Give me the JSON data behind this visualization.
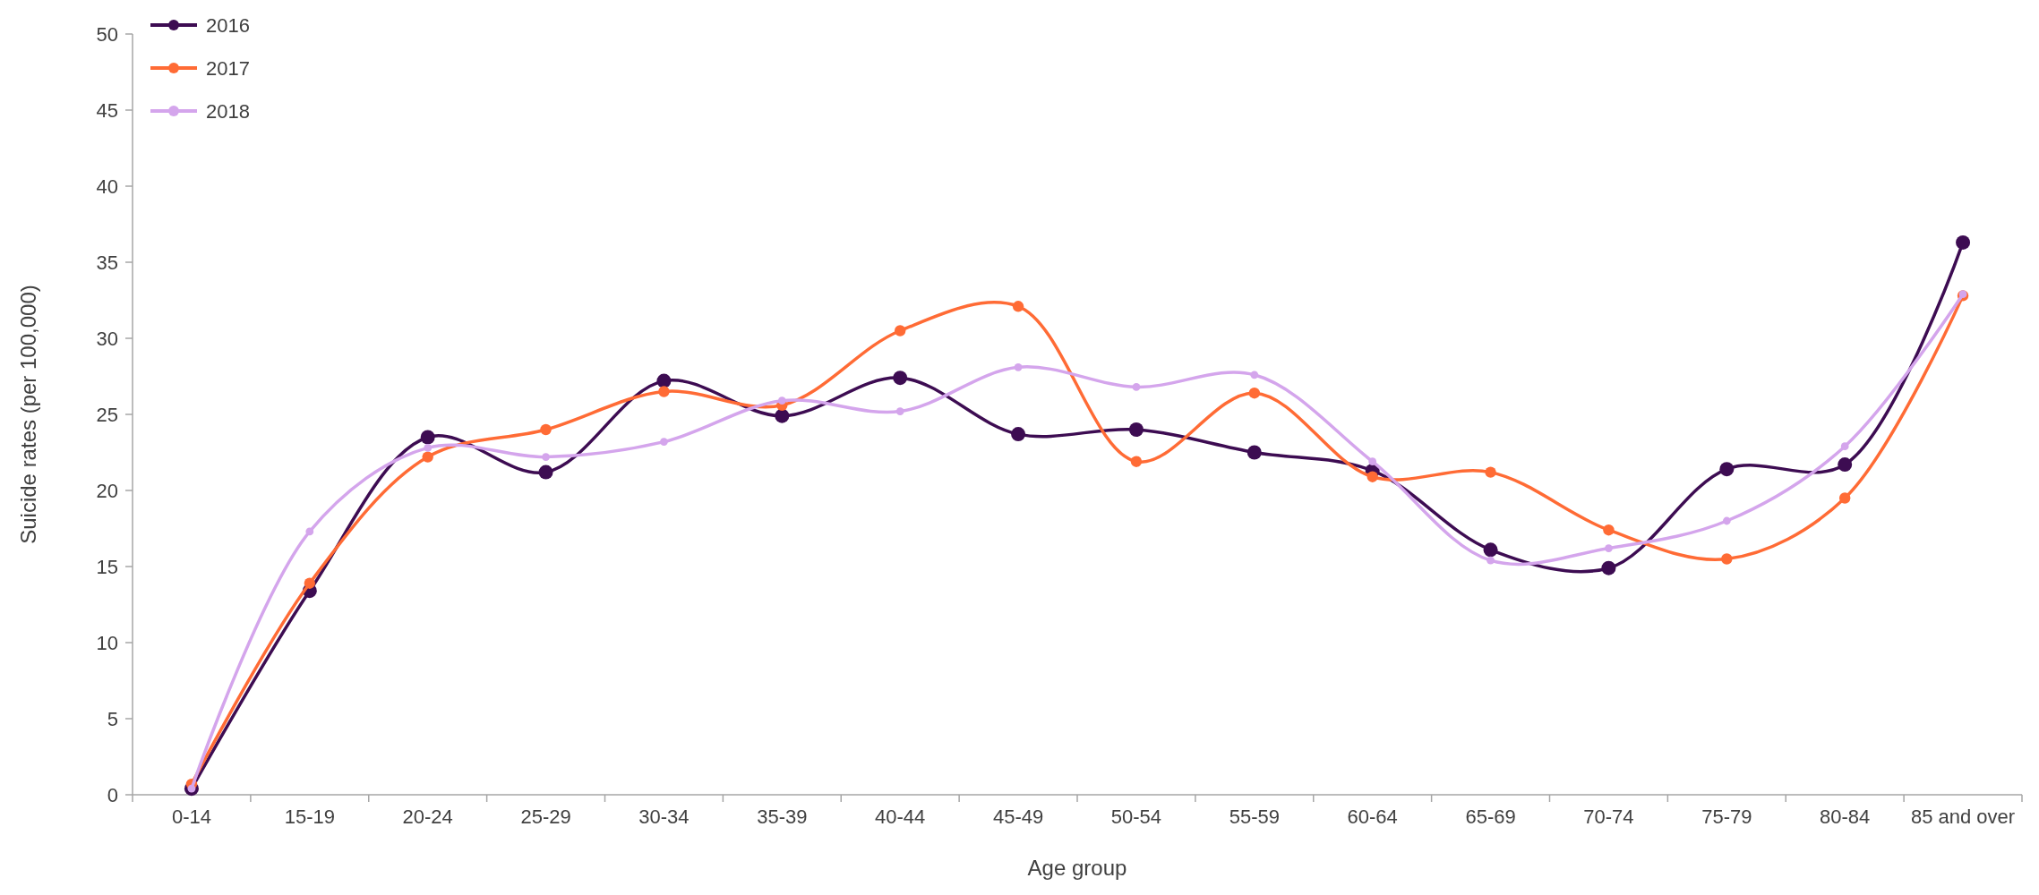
{
  "chart_data": {
    "type": "line",
    "xlabel": "Age group",
    "ylabel": "Suicide rates (per 100,000)",
    "categories": [
      "0-14",
      "15-19",
      "20-24",
      "25-29",
      "30-34",
      "35-39",
      "40-44",
      "45-49",
      "50-54",
      "55-59",
      "60-64",
      "65-69",
      "70-74",
      "75-79",
      "80-84",
      "85 and over"
    ],
    "series": [
      {
        "name": "2016",
        "color": "#3d0c52",
        "values": [
          0.4,
          13.4,
          23.5,
          21.2,
          27.2,
          24.9,
          27.4,
          23.7,
          24.0,
          22.5,
          21.3,
          16.1,
          14.9,
          21.4,
          21.7,
          36.3
        ]
      },
      {
        "name": "2017",
        "color": "#ff6b35",
        "values": [
          0.7,
          13.9,
          22.2,
          24.0,
          26.5,
          25.6,
          30.5,
          32.1,
          21.9,
          26.4,
          20.9,
          21.2,
          17.4,
          15.5,
          19.5,
          32.8
        ]
      },
      {
        "name": "2018",
        "color": "#d4a5ec",
        "values": [
          0.4,
          17.3,
          22.8,
          22.2,
          23.2,
          25.9,
          25.2,
          28.1,
          26.8,
          27.6,
          21.9,
          15.4,
          16.2,
          18.0,
          22.9,
          32.9
        ]
      }
    ],
    "ylim": [
      0,
      50
    ],
    "yticks": [
      0,
      5,
      10,
      15,
      20,
      25,
      30,
      35,
      40,
      45,
      50
    ],
    "grid": false,
    "legend": "top left",
    "marker": "circle",
    "line_style": "solid"
  }
}
